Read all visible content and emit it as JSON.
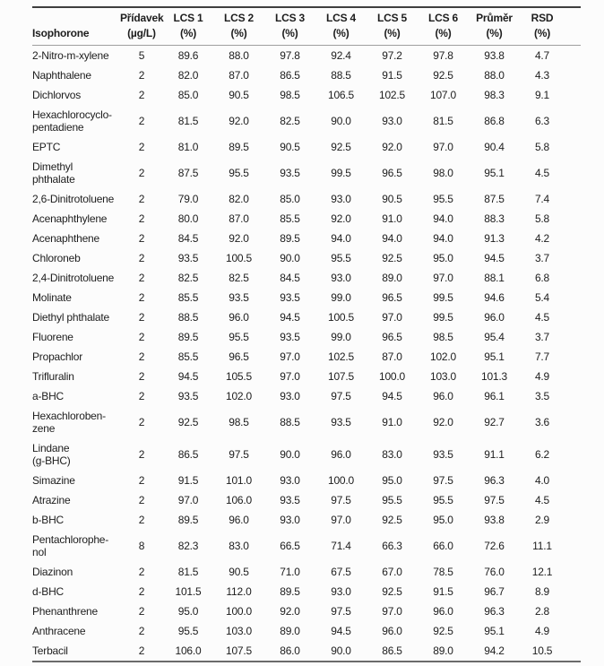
{
  "colors": {
    "background": "#fcfcfc",
    "text": "#1d1d1d",
    "rule-dark": "#3e3e3e",
    "rule-mid": "#6a6a6a",
    "rule-light": "#9e9e9e"
  },
  "table": {
    "columns": [
      {
        "id": "compound",
        "line1": "",
        "line2": "Isophorone"
      },
      {
        "id": "pridavek",
        "line1": "Přídavek",
        "line2": "(µg/L)"
      },
      {
        "id": "lcs1",
        "line1": "LCS 1",
        "line2": "(%)"
      },
      {
        "id": "lcs2",
        "line1": "LCS 2",
        "line2": "(%)"
      },
      {
        "id": "lcs3",
        "line1": "LCS 3",
        "line2": "(%)"
      },
      {
        "id": "lcs4",
        "line1": "LCS 4",
        "line2": "(%)"
      },
      {
        "id": "lcs5",
        "line1": "LCS 5",
        "line2": "(%)"
      },
      {
        "id": "lcs6",
        "line1": "LCS 6",
        "line2": "(%)"
      },
      {
        "id": "prumer",
        "line1": "Průměr",
        "line2": "(%)"
      },
      {
        "id": "rsd",
        "line1": "RSD",
        "line2": "(%)"
      }
    ],
    "rows": [
      {
        "compound": "2-Nitro-m-xylene",
        "pridavek": "5",
        "lcs1": "89.6",
        "lcs2": "88.0",
        "lcs3": "97.8",
        "lcs4": "92.4",
        "lcs5": "97.2",
        "lcs6": "97.8",
        "prumer": "93.8",
        "rsd": "4.7"
      },
      {
        "compound": "Naphthalene",
        "pridavek": "2",
        "lcs1": "82.0",
        "lcs2": "87.0",
        "lcs3": "86.5",
        "lcs4": "88.5",
        "lcs5": "91.5",
        "lcs6": "92.5",
        "prumer": "88.0",
        "rsd": "4.3"
      },
      {
        "compound": "Dichlorvos",
        "pridavek": "2",
        "lcs1": "85.0",
        "lcs2": "90.5",
        "lcs3": "98.5",
        "lcs4": "106.5",
        "lcs5": "102.5",
        "lcs6": "107.0",
        "prumer": "98.3",
        "rsd": "9.1"
      },
      {
        "compound": "Hexachlorocyclo-\npentadiene",
        "pridavek": "2",
        "lcs1": "81.5",
        "lcs2": "92.0",
        "lcs3": "82.5",
        "lcs4": "90.0",
        "lcs5": "93.0",
        "lcs6": "81.5",
        "prumer": "86.8",
        "rsd": "6.3"
      },
      {
        "compound": "EPTC",
        "pridavek": "2",
        "lcs1": "81.0",
        "lcs2": "89.5",
        "lcs3": "90.5",
        "lcs4": "92.5",
        "lcs5": "92.0",
        "lcs6": "97.0",
        "prumer": "90.4",
        "rsd": "5.8"
      },
      {
        "compound": "Dimethyl\nphthalate",
        "pridavek": "2",
        "lcs1": "87.5",
        "lcs2": "95.5",
        "lcs3": "93.5",
        "lcs4": "99.5",
        "lcs5": "96.5",
        "lcs6": "98.0",
        "prumer": "95.1",
        "rsd": "4.5"
      },
      {
        "compound": "2,6-Dinitrotoluene",
        "pridavek": "2",
        "lcs1": "79.0",
        "lcs2": "82.0",
        "lcs3": "85.0",
        "lcs4": "93.0",
        "lcs5": "90.5",
        "lcs6": "95.5",
        "prumer": "87.5",
        "rsd": "7.4"
      },
      {
        "compound": "Acenaphthylene",
        "pridavek": "2",
        "lcs1": "80.0",
        "lcs2": "87.0",
        "lcs3": "85.5",
        "lcs4": "92.0",
        "lcs5": "91.0",
        "lcs6": "94.0",
        "prumer": "88.3",
        "rsd": "5.8"
      },
      {
        "compound": "Acenaphthene",
        "pridavek": "2",
        "lcs1": "84.5",
        "lcs2": "92.0",
        "lcs3": "89.5",
        "lcs4": "94.0",
        "lcs5": "94.0",
        "lcs6": "94.0",
        "prumer": "91.3",
        "rsd": "4.2"
      },
      {
        "compound": "Chloroneb",
        "pridavek": "2",
        "lcs1": "93.5",
        "lcs2": "100.5",
        "lcs3": "90.0",
        "lcs4": "95.5",
        "lcs5": "92.5",
        "lcs6": "95.0",
        "prumer": "94.5",
        "rsd": "3.7"
      },
      {
        "compound": "2,4-Dinitrotoluene",
        "pridavek": "2",
        "lcs1": "82.5",
        "lcs2": "82.5",
        "lcs3": "84.5",
        "lcs4": "93.0",
        "lcs5": "89.0",
        "lcs6": "97.0",
        "prumer": "88.1",
        "rsd": "6.8"
      },
      {
        "compound": "Molinate",
        "pridavek": "2",
        "lcs1": "85.5",
        "lcs2": "93.5",
        "lcs3": "93.5",
        "lcs4": "99.0",
        "lcs5": "96.5",
        "lcs6": "99.5",
        "prumer": "94.6",
        "rsd": "5.4"
      },
      {
        "compound": "Diethyl phthalate",
        "pridavek": "2",
        "lcs1": "88.5",
        "lcs2": "96.0",
        "lcs3": "94.5",
        "lcs4": "100.5",
        "lcs5": "97.0",
        "lcs6": "99.5",
        "prumer": "96.0",
        "rsd": "4.5"
      },
      {
        "compound": "Fluorene",
        "pridavek": "2",
        "lcs1": "89.5",
        "lcs2": "95.5",
        "lcs3": "93.5",
        "lcs4": "99.0",
        "lcs5": "96.5",
        "lcs6": "98.5",
        "prumer": "95.4",
        "rsd": "3.7"
      },
      {
        "compound": "Propachlor",
        "pridavek": "2",
        "lcs1": "85.5",
        "lcs2": "96.5",
        "lcs3": "97.0",
        "lcs4": "102.5",
        "lcs5": "87.0",
        "lcs6": "102.0",
        "prumer": "95.1",
        "rsd": "7.7"
      },
      {
        "compound": "Trifluralin",
        "pridavek": "2",
        "lcs1": "94.5",
        "lcs2": "105.5",
        "lcs3": "97.0",
        "lcs4": "107.5",
        "lcs5": "100.0",
        "lcs6": "103.0",
        "prumer": "101.3",
        "rsd": "4.9"
      },
      {
        "compound": "a-BHC",
        "pridavek": "2",
        "lcs1": "93.5",
        "lcs2": "102.0",
        "lcs3": "93.0",
        "lcs4": "97.5",
        "lcs5": "94.5",
        "lcs6": "96.0",
        "prumer": "96.1",
        "rsd": "3.5"
      },
      {
        "compound": "Hexachloroben-\nzene",
        "pridavek": "2",
        "lcs1": "92.5",
        "lcs2": "98.5",
        "lcs3": "88.5",
        "lcs4": "93.5",
        "lcs5": "91.0",
        "lcs6": "92.0",
        "prumer": "92.7",
        "rsd": "3.6"
      },
      {
        "compound": "Lindane\n(g-BHC)",
        "pridavek": "2",
        "lcs1": "86.5",
        "lcs2": "97.5",
        "lcs3": "90.0",
        "lcs4": "96.0",
        "lcs5": "83.0",
        "lcs6": "93.5",
        "prumer": "91.1",
        "rsd": "6.2"
      },
      {
        "compound": "Simazine",
        "pridavek": "2",
        "lcs1": "91.5",
        "lcs2": "101.0",
        "lcs3": "93.0",
        "lcs4": "100.0",
        "lcs5": "95.0",
        "lcs6": "97.5",
        "prumer": "96.3",
        "rsd": "4.0"
      },
      {
        "compound": "Atrazine",
        "pridavek": "2",
        "lcs1": "97.0",
        "lcs2": "106.0",
        "lcs3": "93.5",
        "lcs4": "97.5",
        "lcs5": "95.5",
        "lcs6": "95.5",
        "prumer": "97.5",
        "rsd": "4.5"
      },
      {
        "compound": "b-BHC",
        "pridavek": "2",
        "lcs1": "89.5",
        "lcs2": "96.0",
        "lcs3": "93.0",
        "lcs4": "97.0",
        "lcs5": "92.5",
        "lcs6": "95.0",
        "prumer": "93.8",
        "rsd": "2.9"
      },
      {
        "compound": "Pentachlorophe-\nnol",
        "pridavek": "8",
        "lcs1": "82.3",
        "lcs2": "83.0",
        "lcs3": "66.5",
        "lcs4": "71.4",
        "lcs5": "66.3",
        "lcs6": "66.0",
        "prumer": "72.6",
        "rsd": "11.1"
      },
      {
        "compound": "Diazinon",
        "pridavek": "2",
        "lcs1": "81.5",
        "lcs2": "90.5",
        "lcs3": "71.0",
        "lcs4": "67.5",
        "lcs5": "67.0",
        "lcs6": "78.5",
        "prumer": "76.0",
        "rsd": "12.1"
      },
      {
        "compound": "d-BHC",
        "pridavek": "2",
        "lcs1": "101.5",
        "lcs2": "112.0",
        "lcs3": "89.5",
        "lcs4": "93.0",
        "lcs5": "92.5",
        "lcs6": "91.5",
        "prumer": "96.7",
        "rsd": "8.9"
      },
      {
        "compound": "Phenanthrene",
        "pridavek": "2",
        "lcs1": "95.0",
        "lcs2": "100.0",
        "lcs3": "92.0",
        "lcs4": "97.5",
        "lcs5": "97.0",
        "lcs6": "96.0",
        "prumer": "96.3",
        "rsd": "2.8"
      },
      {
        "compound": "Anthracene",
        "pridavek": "2",
        "lcs1": "95.5",
        "lcs2": "103.0",
        "lcs3": "89.0",
        "lcs4": "94.5",
        "lcs5": "96.0",
        "lcs6": "92.5",
        "prumer": "95.1",
        "rsd": "4.9"
      },
      {
        "compound": "Terbacil",
        "pridavek": "2",
        "lcs1": "106.0",
        "lcs2": "107.5",
        "lcs3": "86.0",
        "lcs4": "90.0",
        "lcs5": "86.5",
        "lcs6": "89.0",
        "prumer": "94.2",
        "rsd": "10.5"
      }
    ]
  }
}
